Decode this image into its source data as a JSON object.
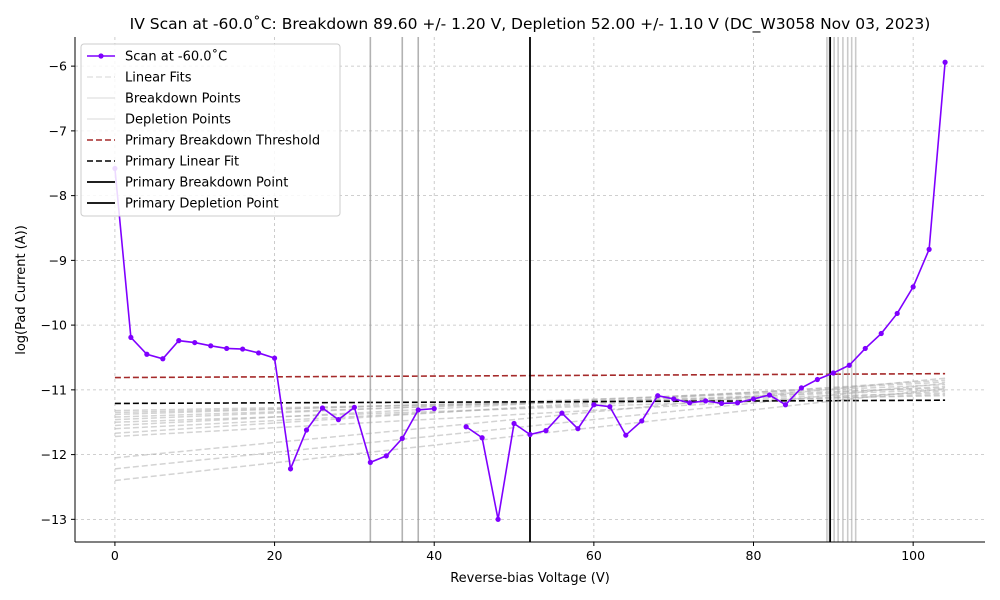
{
  "chart_data": {
    "type": "line",
    "title": "IV Scan at -60.0$^\\circ$C: Breakdown 89.60 +/- 1.20 V, Depletion 52.00 +/- 1.10 V (DC_W3058 Nov 03, 2023)",
    "title_display": "IV Scan at -60.0˚C: Breakdown 89.60 +/- 1.20 V, Depletion 52.00 +/- 1.10 V (DC_W3058 Nov 03, 2023)",
    "xlabel": "Reverse-bias Voltage (V)",
    "ylabel": "log(Pad Current (A))",
    "xlim": [
      -5,
      109
    ],
    "ylim": [
      -13.35,
      -5.55
    ],
    "x_ticks": [
      0,
      20,
      40,
      60,
      80,
      100
    ],
    "y_ticks": [
      -13,
      -12,
      -11,
      -10,
      -9,
      -8,
      -7,
      -6
    ],
    "x_tick_labels": [
      "0",
      "20",
      "40",
      "60",
      "80",
      "100"
    ],
    "y_tick_labels": [
      "−13",
      "−12",
      "−11",
      "−10",
      "−9",
      "−8",
      "−7",
      "−6"
    ],
    "grid": true,
    "legend_position": "top-left",
    "legend": [
      "Scan at -60.0˚C",
      "Linear Fits",
      "Breakdown Points",
      "Depletion Points",
      "Primary Breakdown Threshold",
      "Primary Linear Fit",
      "Primary Breakdown Point",
      "Primary Depletion Point"
    ],
    "series": [
      {
        "name": "Scan at -60.0˚C",
        "color": "#7f00ff",
        "style": "solid-with-markers",
        "segments": [
          [
            [
              0,
              -7.58
            ],
            [
              2,
              -10.19
            ],
            [
              4,
              -10.45
            ],
            [
              6,
              -10.52
            ],
            [
              8,
              -10.24
            ],
            [
              10,
              -10.27
            ],
            [
              12,
              -10.32
            ],
            [
              14,
              -10.36
            ],
            [
              16,
              -10.37
            ],
            [
              18,
              -10.43
            ],
            [
              20,
              -10.51
            ],
            [
              22,
              -12.22
            ],
            [
              24,
              -11.62
            ],
            [
              26,
              -11.28
            ],
            [
              28,
              -11.46
            ],
            [
              30,
              -11.27
            ],
            [
              32,
              -12.12
            ],
            [
              34,
              -12.02
            ],
            [
              36,
              -11.75
            ],
            [
              38,
              -11.31
            ],
            [
              40,
              -11.29
            ]
          ],
          [
            [
              44,
              -11.57
            ],
            [
              46,
              -11.74
            ],
            [
              48,
              -13.0
            ],
            [
              50,
              -11.52
            ],
            [
              52,
              -11.69
            ],
            [
              54,
              -11.63
            ],
            [
              56,
              -11.36
            ],
            [
              58,
              -11.6
            ],
            [
              60,
              -11.23
            ],
            [
              62,
              -11.26
            ],
            [
              64,
              -11.7
            ],
            [
              66,
              -11.48
            ],
            [
              68,
              -11.09
            ],
            [
              70,
              -11.14
            ],
            [
              72,
              -11.2
            ],
            [
              74,
              -11.17
            ],
            [
              76,
              -11.21
            ],
            [
              78,
              -11.2
            ],
            [
              80,
              -11.14
            ],
            [
              82,
              -11.08
            ],
            [
              84,
              -11.23
            ],
            [
              86,
              -10.97
            ],
            [
              88,
              -10.84
            ],
            [
              90,
              -10.74
            ],
            [
              92,
              -10.62
            ],
            [
              94,
              -10.36
            ],
            [
              96,
              -10.13
            ],
            [
              98,
              -9.82
            ],
            [
              100,
              -9.41
            ],
            [
              102,
              -8.83
            ],
            [
              104,
              -5.94
            ]
          ]
        ]
      },
      {
        "name": "Primary Breakdown Threshold",
        "color": "#a52a2a",
        "style": "dashed",
        "points": [
          [
            0,
            -10.81
          ],
          [
            104,
            -10.75
          ]
        ]
      },
      {
        "name": "Primary Linear Fit",
        "color": "#000000",
        "style": "dashed",
        "points": [
          [
            0,
            -11.21
          ],
          [
            104,
            -11.16
          ]
        ]
      },
      {
        "name": "Linear Fits",
        "color": "#b0b0b0",
        "style": "dashed",
        "lines": [
          [
            [
              0,
              -11.32
            ],
            [
              104,
              -11.09
            ]
          ],
          [
            [
              0,
              -11.35
            ],
            [
              104,
              -11.05
            ]
          ],
          [
            [
              0,
              -11.38
            ],
            [
              104,
              -10.97
            ]
          ],
          [
            [
              0,
              -11.42
            ],
            [
              104,
              -11.0
            ]
          ],
          [
            [
              0,
              -11.46
            ],
            [
              104,
              -10.92
            ]
          ],
          [
            [
              0,
              -11.5
            ],
            [
              104,
              -11.07
            ]
          ],
          [
            [
              0,
              -11.55
            ],
            [
              104,
              -10.88
            ]
          ],
          [
            [
              0,
              -11.6
            ],
            [
              104,
              -10.95
            ]
          ],
          [
            [
              0,
              -11.67
            ],
            [
              104,
              -10.85
            ]
          ],
          [
            [
              0,
              -11.72
            ],
            [
              104,
              -11.02
            ]
          ],
          [
            [
              0,
              -12.05
            ],
            [
              104,
              -10.82
            ]
          ],
          [
            [
              0,
              -12.22
            ],
            [
              104,
              -10.9
            ]
          ],
          [
            [
              0,
              -12.4
            ],
            [
              104,
              -10.98
            ]
          ]
        ]
      },
      {
        "name": "Depletion Points",
        "color": "#a0a0a0",
        "style": "vertical",
        "x": [
          32,
          36,
          38
        ]
      },
      {
        "name": "Breakdown Points",
        "color": "#a0a0a0",
        "style": "vertical",
        "x": [
          89.2,
          89.5,
          90.1,
          90.6,
          91.2,
          91.8,
          92.3,
          92.8
        ]
      },
      {
        "name": "Primary Breakdown Point",
        "color": "#000000",
        "style": "vertical",
        "x": [
          89.6
        ]
      },
      {
        "name": "Primary Depletion Point",
        "color": "#000000",
        "style": "vertical",
        "x": [
          52.0
        ]
      }
    ]
  }
}
